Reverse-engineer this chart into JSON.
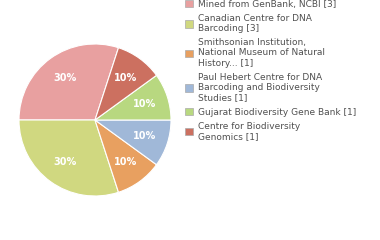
{
  "legend_labels": [
    "Mined from GenBank, NCBI [3]",
    "Canadian Centre for DNA\nBarcoding [3]",
    "Smithsonian Institution,\nNational Museum of Natural\nHistory... [1]",
    "Paul Hebert Centre for DNA\nBarcoding and Biodiversity\nStudies [1]",
    "Gujarat Biodiversity Gene Bank [1]",
    "Centre for Biodiversity\nGenomics [1]"
  ],
  "values": [
    30,
    30,
    10,
    10,
    10,
    10
  ],
  "colors": [
    "#e8a0a0",
    "#d0d880",
    "#e8a060",
    "#a0b8d8",
    "#b8d880",
    "#cc7060"
  ],
  "startangle": 72,
  "background_color": "#ffffff",
  "text_color": "#505050",
  "pct_fontsize": 7,
  "legend_fontsize": 6.5
}
